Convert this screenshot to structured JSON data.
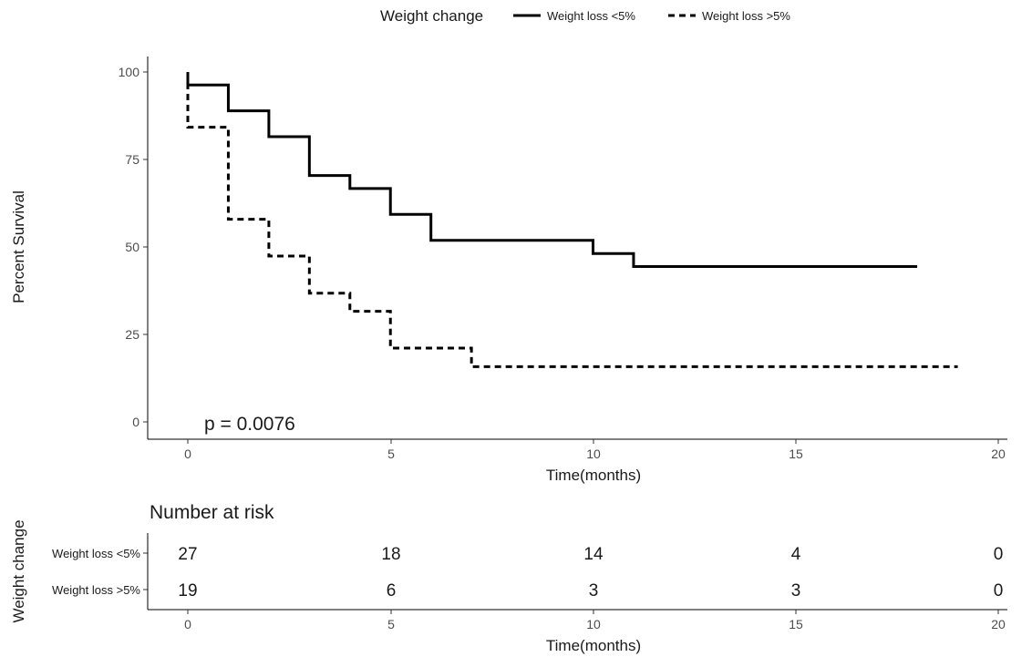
{
  "chart_data": {
    "type": "line",
    "subtype": "kaplan-meier step",
    "legend": {
      "title": "Weight change",
      "position": "top",
      "entries": [
        {
          "label": "Weight loss <5%",
          "line_style": "solid"
        },
        {
          "label": "Weight loss >5%",
          "line_style": "dashed"
        }
      ]
    },
    "xlabel": "Time(months)",
    "ylabel": "Percent Survival",
    "xlim": [
      -1,
      20.3
    ],
    "ylim": [
      -4,
      104
    ],
    "x_ticks": [
      0,
      5,
      10,
      15,
      20
    ],
    "y_ticks": [
      0,
      25,
      50,
      75,
      100
    ],
    "grid": false,
    "annotation": "p = 0.0076",
    "line_color": "#000000",
    "series": [
      {
        "name": "Weight loss <5%",
        "style": "solid",
        "steps": [
          {
            "x": 0,
            "y": 96.3
          },
          {
            "x": 1,
            "y": 88.9
          },
          {
            "x": 2,
            "y": 81.5
          },
          {
            "x": 3,
            "y": 70.4
          },
          {
            "x": 4,
            "y": 66.7
          },
          {
            "x": 5,
            "y": 59.3
          },
          {
            "x": 6,
            "y": 51.9
          },
          {
            "x": 10,
            "y": 48.1
          },
          {
            "x": 11,
            "y": 44.4
          }
        ],
        "end_x": 18
      },
      {
        "name": "Weight loss >5%",
        "style": "dashed",
        "steps": [
          {
            "x": 0,
            "y": 84.2
          },
          {
            "x": 1,
            "y": 57.9
          },
          {
            "x": 2,
            "y": 47.4
          },
          {
            "x": 3,
            "y": 36.8
          },
          {
            "x": 4,
            "y": 31.6
          },
          {
            "x": 5,
            "y": 21.1
          },
          {
            "x": 7,
            "y": 15.8
          }
        ],
        "end_x": 19
      }
    ],
    "risk_table": {
      "title": "Number at risk",
      "ylabel": "Weight change",
      "xlabel": "Time(months)",
      "times": [
        0,
        5,
        10,
        15,
        20
      ],
      "rows": [
        {
          "label": "Weight loss <5%",
          "values": [
            "27",
            "18",
            "14",
            "4",
            "0"
          ]
        },
        {
          "label": "Weight loss >5%",
          "values": [
            "19",
            "6",
            "3",
            "3",
            "0"
          ]
        }
      ]
    }
  }
}
